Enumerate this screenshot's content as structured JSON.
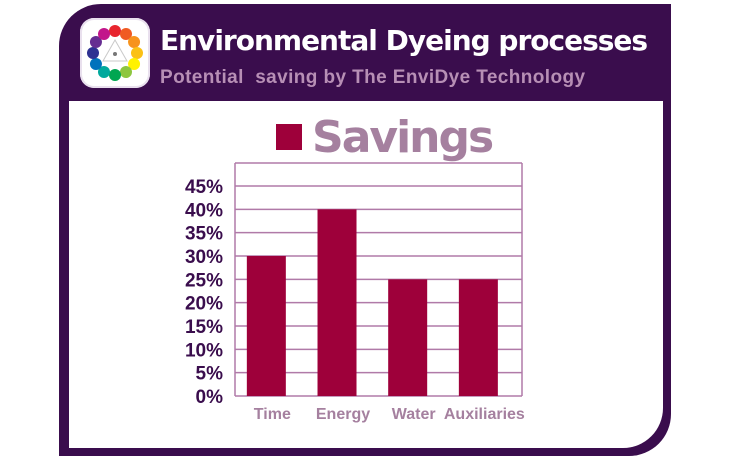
{
  "header": {
    "title": "Environmental Dyeing processes",
    "subtitle": "Potential  saving by The EnviDye Technology",
    "logo_icon": "color-wheel-icon"
  },
  "colors": {
    "frame": "#3a0d4d",
    "bar": "#9e003a",
    "grid": "#b07aa8",
    "legend_text": "#a5809f",
    "tick_text": "#3a0d4d",
    "category_text": "#a5809f"
  },
  "chart_data": {
    "type": "bar",
    "categories": [
      "Time",
      "Energy",
      "Water",
      "Auxiliaries"
    ],
    "series": [
      {
        "name": "Savings",
        "values": [
          30,
          40,
          25,
          25
        ]
      }
    ],
    "ylim": [
      0,
      45
    ],
    "yticks": [
      "0%",
      "5%",
      "10%",
      "15%",
      "20%",
      "25%",
      "30%",
      "35%",
      "40%",
      "45%"
    ],
    "grid": true,
    "legend": "top"
  }
}
